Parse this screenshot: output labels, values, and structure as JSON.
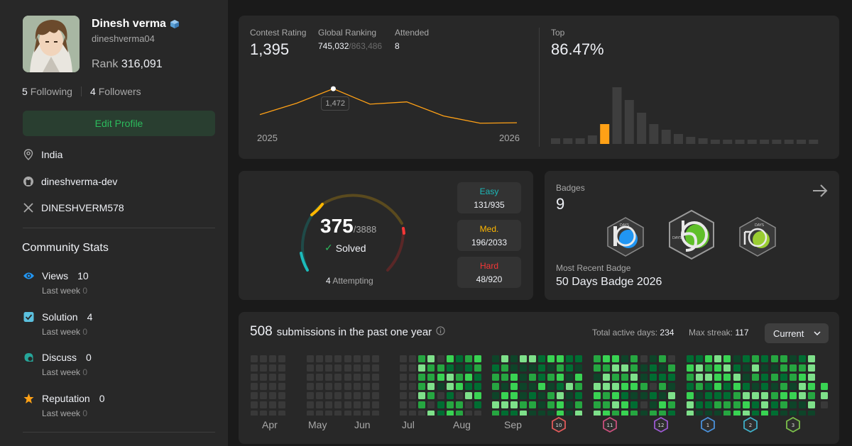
{
  "profile": {
    "name": "Dinesh verma",
    "username": "dineshverma04",
    "rank_label": "Rank",
    "rank_value": "316,091",
    "following_count": "5",
    "following_label": "Following",
    "followers_count": "4",
    "followers_label": "Followers",
    "edit_label": "Edit Profile",
    "location": "India",
    "github": "dineshverma-dev",
    "twitter": "DINESHVERM578"
  },
  "community": {
    "title": "Community Stats",
    "items": [
      {
        "label": "Views",
        "value": "10",
        "last_week_label": "Last week",
        "last_week": "0",
        "icon": "eye-icon",
        "color": "#2196f3"
      },
      {
        "label": "Solution",
        "value": "4",
        "last_week_label": "Last week",
        "last_week": "0",
        "icon": "checkbox-icon",
        "color": "#5bc0de"
      },
      {
        "label": "Discuss",
        "value": "0",
        "last_week_label": "Last week",
        "last_week": "0",
        "icon": "chat-icon",
        "color": "#26a69a"
      },
      {
        "label": "Reputation",
        "value": "0",
        "last_week_label": "Last week",
        "last_week": "0",
        "icon": "star-icon",
        "color": "#ffa116"
      }
    ]
  },
  "contest": {
    "rating_label": "Contest Rating",
    "rating": "1,395",
    "global_label": "Global Ranking",
    "global_rank": "745,032",
    "global_total": "/863,486",
    "attended_label": "Attended",
    "attended": "8",
    "tooltip": "1,472",
    "x_start": "2025",
    "x_end": "2026",
    "top_label": "Top",
    "top_value": "86.47%",
    "accent": "#ffa116",
    "chart_data": {
      "type": "line",
      "title": "",
      "series": [
        {
          "name": "",
          "values": [
            1415,
            1440,
            1472,
            1438,
            1443,
            1412,
            1396,
            1397
          ]
        }
      ],
      "xlabel": "",
      "ylabel": "",
      "x_ticks": [
        "2025",
        "2026"
      ],
      "highlight": {
        "index": 2,
        "value": 1472
      }
    },
    "histogram": {
      "type": "bar",
      "values": [
        4,
        4,
        4,
        6,
        14,
        40,
        31,
        22,
        14,
        10,
        7,
        5,
        4,
        3,
        3,
        3,
        3,
        3,
        3,
        3,
        3,
        3
      ],
      "highlight_index": 4
    }
  },
  "solved": {
    "count": "375",
    "total": "/3888",
    "solved_label": "Solved",
    "attempting_count": "4",
    "attempting_label": "Attempting",
    "easy": {
      "label": "Easy",
      "value": "131/935",
      "color": "#1cbaba",
      "fraction": 0.14
    },
    "medium": {
      "label": "Med.",
      "value": "196/2033",
      "color": "#ffb700",
      "fraction": 0.096
    },
    "hard": {
      "label": "Hard",
      "value": "48/920",
      "color": "#f63737",
      "fraction": 0.052
    }
  },
  "badges": {
    "label": "Badges",
    "count": "9",
    "recent_label": "Most Recent Badge",
    "recent_name": "50 Days Badge 2026"
  },
  "submissions": {
    "count": "508",
    "text": "submissions in the past one year",
    "active_label": "Total active days:",
    "active_value": "234",
    "streak_label": "Max streak:",
    "streak_value": "117",
    "filter": "Current",
    "months": [
      "Apr",
      "May",
      "Jun",
      "Jul",
      "Aug",
      "Sep"
    ],
    "month_badges": [
      "10",
      "11",
      "12",
      "1",
      "2",
      "3"
    ]
  }
}
